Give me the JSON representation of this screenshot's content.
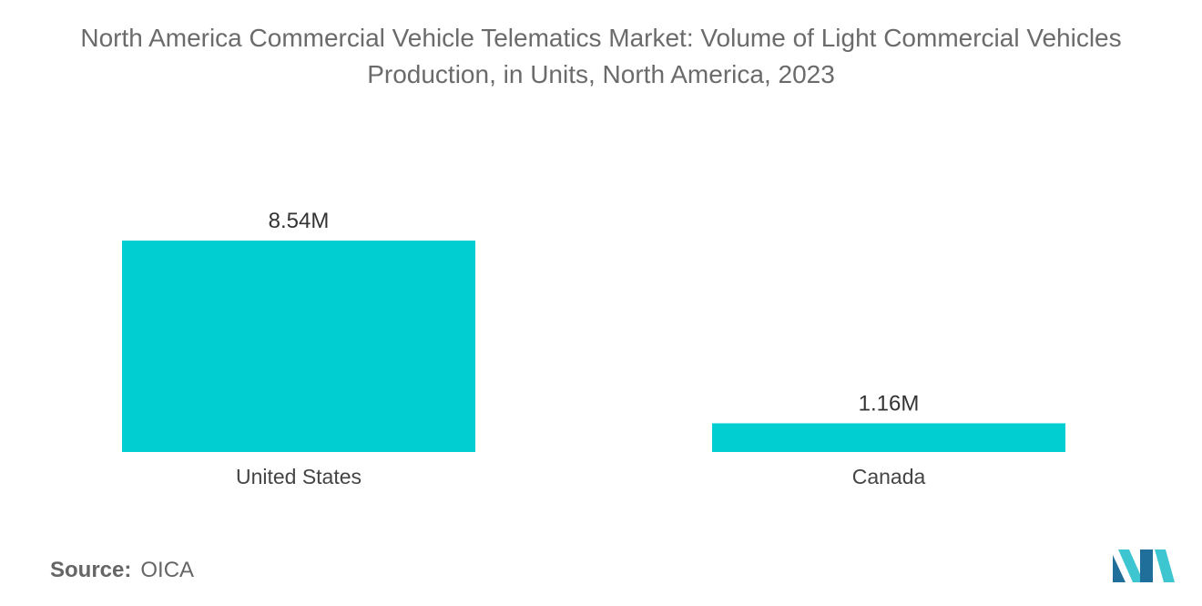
{
  "title": "North America Commercial Vehicle Telematics Market: Volume of Light Commercial Vehicles Production, in Units, North America, 2023",
  "source": {
    "label": "Source:",
    "value": "OICA"
  },
  "colors": {
    "bar": "#00CED1",
    "logo_dark": "#1f6f9a",
    "logo_light": "#3ec6d0"
  },
  "chart_data": {
    "type": "bar",
    "title": "North America Commercial Vehicle Telematics Market: Volume of Light Commercial Vehicles Production, in Units, North America, 2023",
    "categories": [
      "United States",
      "Canada"
    ],
    "values": [
      8.54,
      1.16
    ],
    "value_labels": [
      "8.54M",
      "1.16M"
    ],
    "unit": "M",
    "xlabel": "",
    "ylabel": "",
    "ylim": [
      0,
      8.54
    ],
    "grid": false,
    "legend": "none"
  }
}
